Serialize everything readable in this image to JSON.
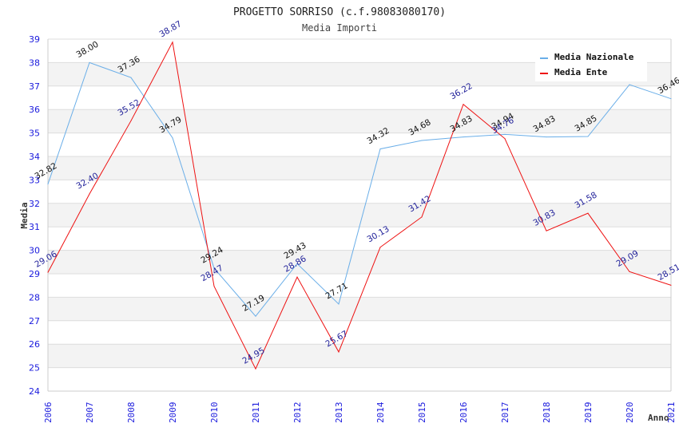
{
  "chart_data": {
    "type": "line",
    "title": "PROGETTO SORRISO (c.f.98083080170)",
    "subtitle": "Media Importi",
    "xlabel": "Anno",
    "ylabel": "Media",
    "ylim": [
      24,
      39
    ],
    "yticks": [
      "24",
      "25",
      "26",
      "27",
      "28",
      "29",
      "30",
      "31",
      "32",
      "33",
      "34",
      "35",
      "36",
      "37",
      "38",
      "39"
    ],
    "categories": [
      "2006",
      "2007",
      "2008",
      "2009",
      "2010",
      "2011",
      "2012",
      "2013",
      "2014",
      "2015",
      "2016",
      "2017",
      "2018",
      "2019",
      "2020",
      "2021"
    ],
    "grid": true,
    "legend_position": "top-right",
    "series": [
      {
        "name": "Media Nazionale",
        "color": "#6aaee8",
        "values": [
          32.82,
          38.0,
          37.36,
          34.79,
          29.24,
          27.19,
          29.43,
          27.71,
          34.32,
          34.68,
          34.83,
          34.94,
          34.83,
          34.85,
          37.06,
          36.46
        ],
        "labels": [
          "32.82",
          "38.00",
          "37.36",
          "34.79",
          "29.24",
          "27.19",
          "29.43",
          "27.71",
          "34.32",
          "34.68",
          "34.83",
          "34.94",
          "34.83",
          "34.85",
          "",
          "36.46"
        ]
      },
      {
        "name": "Media Ente",
        "color": "#ee1111",
        "values": [
          29.06,
          32.4,
          35.52,
          38.87,
          28.47,
          24.95,
          28.86,
          25.67,
          30.13,
          31.42,
          36.22,
          34.76,
          30.83,
          31.58,
          29.09,
          28.51
        ],
        "labels": [
          "29.06",
          "32.40",
          "35.52",
          "38.87",
          "28.47",
          "24.95",
          "28.86",
          "25.67",
          "30.13",
          "31.42",
          "36.22",
          "34.76",
          "30.83",
          "31.58",
          "29.09",
          "28.51"
        ]
      }
    ]
  }
}
